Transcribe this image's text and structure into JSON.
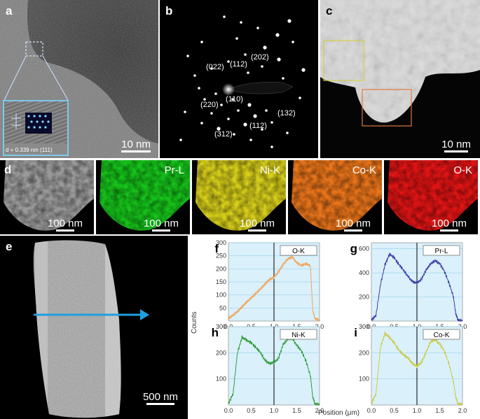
{
  "panels": {
    "a": {
      "label": "a",
      "scalebar": "10 nm",
      "inset_text": "d = 0.339 nm  (111)"
    },
    "b": {
      "label": "b",
      "spots": [
        "(202)",
        "(022)",
        "(112)",
        "(110)",
        "(220)",
        "(132)",
        "(112)",
        "(312)"
      ]
    },
    "c": {
      "label": "c",
      "scalebar": "10 nm"
    },
    "d": {
      "label": "d",
      "maps": [
        {
          "title": "",
          "scalebar": "100 nm",
          "color": "#9a9a9a"
        },
        {
          "title": "Pr-L",
          "scalebar": "100 nm",
          "color": "#16c21a"
        },
        {
          "title": "Ni-K",
          "scalebar": "100 nm",
          "color": "#d6cd1a"
        },
        {
          "title": "Co-K",
          "scalebar": "100 nm",
          "color": "#e8741a"
        },
        {
          "title": "O-K",
          "scalebar": "100 nm",
          "color": "#e01414"
        }
      ]
    },
    "e": {
      "label": "e",
      "scalebar": "500 nm"
    }
  },
  "linescan": {
    "ylabel": "Counts",
    "xlabel": "Position (μm)",
    "xticks": [
      "0.0",
      "0.5",
      "1.0",
      "1.5",
      "2.0"
    ]
  },
  "chart_data": [
    {
      "type": "line",
      "panel": "f",
      "legend": "O-K",
      "color": "#f0a050",
      "xlim": [
        0,
        2.0
      ],
      "ylim": [
        0,
        300
      ],
      "yticks": [
        "50",
        "100",
        "150",
        "200",
        "250",
        "300"
      ],
      "x": [
        0.0,
        0.1,
        0.2,
        0.3,
        0.4,
        0.5,
        0.6,
        0.7,
        0.8,
        0.9,
        1.0,
        1.1,
        1.2,
        1.3,
        1.4,
        1.5,
        1.6,
        1.7,
        1.8,
        1.85,
        1.9,
        2.0
      ],
      "y": [
        10,
        20,
        35,
        55,
        75,
        90,
        105,
        120,
        140,
        160,
        170,
        190,
        215,
        235,
        245,
        225,
        215,
        220,
        210,
        40,
        10,
        5
      ]
    },
    {
      "type": "line",
      "panel": "g",
      "legend": "Pr-L",
      "color": "#2a2aa0",
      "xlim": [
        0,
        2.0
      ],
      "ylim": [
        0,
        650
      ],
      "yticks": [
        "200",
        "400",
        "600"
      ],
      "x": [
        0.0,
        0.1,
        0.2,
        0.3,
        0.4,
        0.5,
        0.6,
        0.7,
        0.8,
        0.9,
        1.0,
        1.1,
        1.2,
        1.3,
        1.4,
        1.5,
        1.6,
        1.7,
        1.8,
        1.85,
        1.9,
        2.0
      ],
      "y": [
        10,
        40,
        300,
        470,
        560,
        530,
        470,
        420,
        370,
        330,
        320,
        350,
        420,
        470,
        500,
        480,
        420,
        320,
        200,
        60,
        10,
        5
      ]
    },
    {
      "type": "line",
      "panel": "h",
      "legend": "Ni-K",
      "color": "#22962a",
      "xlim": [
        0,
        2.0
      ],
      "ylim": [
        0,
        300
      ],
      "yticks": [
        "100",
        "200",
        "300"
      ],
      "x": [
        0.0,
        0.1,
        0.2,
        0.3,
        0.4,
        0.5,
        0.6,
        0.7,
        0.8,
        0.9,
        1.0,
        1.1,
        1.2,
        1.3,
        1.4,
        1.5,
        1.6,
        1.7,
        1.8,
        1.85,
        1.9,
        2.0
      ],
      "y": [
        5,
        40,
        200,
        260,
        250,
        240,
        220,
        200,
        170,
        160,
        165,
        180,
        230,
        250,
        255,
        230,
        210,
        170,
        110,
        30,
        5,
        3
      ]
    },
    {
      "type": "line",
      "panel": "i",
      "legend": "Co-K",
      "color": "#c8c830",
      "xlim": [
        0,
        2.0
      ],
      "ylim": [
        0,
        300
      ],
      "yticks": [
        "100",
        "200",
        "300"
      ],
      "x": [
        0.0,
        0.1,
        0.2,
        0.3,
        0.4,
        0.5,
        0.6,
        0.7,
        0.8,
        0.9,
        1.0,
        1.1,
        1.2,
        1.3,
        1.4,
        1.5,
        1.6,
        1.7,
        1.8,
        1.85,
        1.9,
        2.0
      ],
      "y": [
        5,
        40,
        220,
        275,
        260,
        240,
        210,
        190,
        180,
        160,
        150,
        165,
        200,
        240,
        250,
        235,
        210,
        160,
        90,
        30,
        5,
        3
      ]
    }
  ]
}
